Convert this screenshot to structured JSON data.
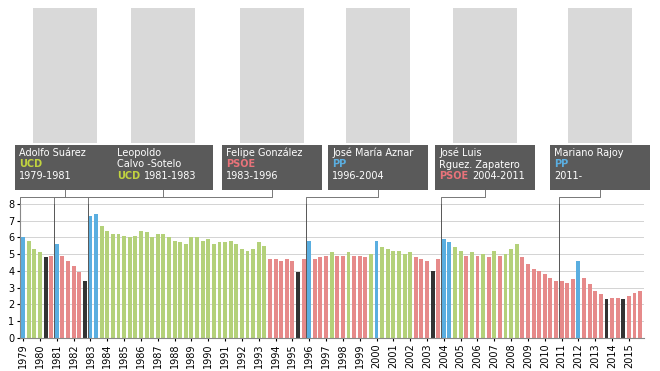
{
  "chart_data": {
    "type": "bar",
    "categories": [
      "1979",
      null,
      null,
      "1980",
      null,
      null,
      "1981",
      null,
      null,
      "1982",
      null,
      null,
      "1983",
      null,
      null,
      "1984",
      null,
      null,
      "1985",
      null,
      null,
      "1986",
      null,
      null,
      "1987",
      null,
      null,
      "1988",
      null,
      null,
      "1989",
      null,
      null,
      "1990",
      null,
      null,
      "1991",
      null,
      null,
      "1992",
      null,
      null,
      "1993",
      null,
      null,
      "1994",
      null,
      null,
      "1995",
      null,
      null,
      "1996",
      null,
      null,
      "1997",
      null,
      null,
      "1998",
      null,
      null,
      "1999",
      null,
      null,
      "2000",
      null,
      null,
      "2001",
      null,
      null,
      "2002",
      null,
      null,
      "2003",
      null,
      null,
      "2004",
      null,
      null,
      "2005",
      null,
      null,
      "2006",
      null,
      null,
      "2007",
      null,
      null,
      "2008",
      null,
      null,
      "2009",
      null,
      null,
      "2010",
      null,
      null,
      "2011",
      null,
      null,
      "2012",
      null,
      null,
      "2013",
      null,
      null,
      "2014",
      null,
      null,
      "2015",
      null,
      null
    ],
    "values": [
      6.0,
      5.8,
      5.3,
      5.1,
      4.8,
      4.9,
      5.6,
      4.9,
      4.6,
      4.3,
      3.9,
      3.4,
      7.3,
      7.4,
      6.7,
      6.4,
      6.2,
      6.2,
      6.1,
      6.0,
      6.1,
      6.4,
      6.3,
      6.0,
      6.2,
      6.2,
      6.0,
      5.8,
      5.7,
      5.6,
      6.0,
      6.0,
      5.8,
      5.9,
      5.6,
      5.7,
      5.7,
      5.8,
      5.6,
      5.3,
      5.2,
      5.3,
      5.7,
      5.5,
      4.7,
      4.7,
      4.6,
      4.7,
      4.6,
      3.9,
      4.7,
      5.8,
      4.7,
      4.8,
      4.9,
      5.1,
      4.9,
      4.9,
      5.1,
      4.9,
      4.9,
      4.8,
      5.0,
      5.8,
      5.4,
      5.3,
      5.2,
      5.2,
      5.0,
      5.1,
      4.8,
      4.7,
      4.6,
      4.0,
      4.7,
      5.9,
      5.7,
      5.4,
      5.2,
      4.9,
      5.1,
      4.9,
      5.0,
      4.8,
      5.2,
      4.9,
      5.0,
      5.3,
      5.6,
      4.8,
      4.4,
      4.1,
      4.0,
      3.8,
      3.6,
      3.4,
      3.4,
      3.3,
      3.5,
      4.6,
      3.6,
      3.2,
      2.8,
      2.6,
      2.3,
      2.4,
      2.4,
      2.3,
      2.5,
      2.7,
      2.8
    ],
    "colors": [
      "#5aaee0",
      "#b4d17a",
      "#b4d17a",
      "#b4d17a",
      "#333333",
      "#e68a8a",
      "#5aaee0",
      "#e68a8a",
      "#e68a8a",
      "#e68a8a",
      "#e68a8a",
      "#333333",
      "#5aaee0",
      "#5aaee0",
      "#b4d17a",
      "#b4d17a",
      "#b4d17a",
      "#b4d17a",
      "#b4d17a",
      "#b4d17a",
      "#b4d17a",
      "#b4d17a",
      "#b4d17a",
      "#b4d17a",
      "#b4d17a",
      "#b4d17a",
      "#b4d17a",
      "#b4d17a",
      "#b4d17a",
      "#b4d17a",
      "#b4d17a",
      "#b4d17a",
      "#b4d17a",
      "#b4d17a",
      "#b4d17a",
      "#b4d17a",
      "#b4d17a",
      "#b4d17a",
      "#b4d17a",
      "#b4d17a",
      "#b4d17a",
      "#b4d17a",
      "#b4d17a",
      "#b4d17a",
      "#e68a8a",
      "#e68a8a",
      "#e68a8a",
      "#e68a8a",
      "#e68a8a",
      "#333333",
      "#e68a8a",
      "#5aaee0",
      "#e68a8a",
      "#e68a8a",
      "#e68a8a",
      "#b4d17a",
      "#e68a8a",
      "#e68a8a",
      "#b4d17a",
      "#e68a8a",
      "#e68a8a",
      "#e68a8a",
      "#b4d17a",
      "#5aaee0",
      "#b4d17a",
      "#b4d17a",
      "#b4d17a",
      "#b4d17a",
      "#b4d17a",
      "#b4d17a",
      "#e68a8a",
      "#e68a8a",
      "#e68a8a",
      "#333333",
      "#e68a8a",
      "#5aaee0",
      "#5aaee0",
      "#b4d17a",
      "#b4d17a",
      "#e68a8a",
      "#b4d17a",
      "#e68a8a",
      "#b4d17a",
      "#e68a8a",
      "#b4d17a",
      "#e68a8a",
      "#b4d17a",
      "#b4d17a",
      "#b4d17a",
      "#e68a8a",
      "#e68a8a",
      "#e68a8a",
      "#e68a8a",
      "#e68a8a",
      "#e68a8a",
      "#e68a8a",
      "#e68a8a",
      "#e68a8a",
      "#e68a8a",
      "#5aaee0",
      "#e68a8a",
      "#e68a8a",
      "#e68a8a",
      "#e68a8a",
      "#333333",
      "#e68a8a",
      "#e68a8a",
      "#333333",
      "#e68a8a",
      "#e68a8a",
      "#e68a8a"
    ],
    "ylim": [
      0,
      8
    ],
    "yticks": [
      0,
      1,
      2,
      3,
      4,
      5,
      6,
      7,
      8
    ],
    "grid": true
  },
  "header": {
    "leaders": [
      {
        "name": "Adolfo Suárez",
        "party": "UCD",
        "years": "1979-1981",
        "color": "#c2d43f"
      },
      {
        "name": "Leopoldo\nCalvo -Sotelo",
        "party": "UCD",
        "years": "1981-1983",
        "color": "#c2d43f"
      },
      {
        "name": "Felipe González",
        "party": "PSOE",
        "years": "1983-1996",
        "color": "#e8737a"
      },
      {
        "name": "José María Aznar",
        "party": "PP",
        "years": "1996-2004",
        "color": "#5aaee0"
      },
      {
        "name": "José Luis\nRguez. Zapatero",
        "party": "PSOE",
        "years": "2004-2011",
        "color": "#e8737a"
      },
      {
        "name": "Mariano Rajoy",
        "party": "PP",
        "years": "2011-",
        "color": "#5aaee0"
      }
    ]
  }
}
